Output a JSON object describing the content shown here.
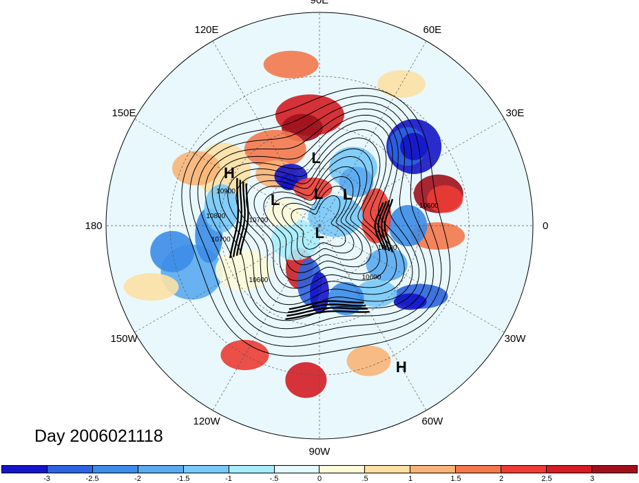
{
  "map": {
    "projection": "polar-stereographic-north",
    "center_lon_at_right": "0",
    "longitude_labels": [
      "90E",
      "60E",
      "30E",
      "0",
      "30W",
      "60W",
      "90W",
      "120W",
      "150W",
      "180",
      "150E",
      "120E"
    ],
    "pressure_centers": [
      {
        "type": "L",
        "lat": 55,
        "lon": 93
      },
      {
        "type": "L",
        "lat": 73,
        "lon": 92
      },
      {
        "type": "L",
        "lat": 68,
        "lon": 48
      },
      {
        "type": "L",
        "lat": 63,
        "lon": 150
      },
      {
        "type": "L",
        "lat": 86,
        "lon": -90
      },
      {
        "type": "H",
        "lat": 38,
        "lon": 150
      },
      {
        "type": "H",
        "lat": 15,
        "lon": -60
      }
    ],
    "contour_labels": [
      {
        "text": "10900",
        "lat": 40,
        "lon": 160
      },
      {
        "text": "10800",
        "lat": 38,
        "lon": 175
      },
      {
        "text": "10700",
        "lat": 58,
        "lon": 175
      },
      {
        "text": "10700",
        "lat": 40,
        "lon": -172
      },
      {
        "text": "10600",
        "lat": 48,
        "lon": -138
      },
      {
        "text": "10600",
        "lat": 52,
        "lon": -45
      },
      {
        "text": "10500",
        "lat": 53,
        "lon": -18
      },
      {
        "text": "10600",
        "lat": 35,
        "lon": 10
      }
    ],
    "colors": {
      "background": "#ffffff",
      "ocean_neutral": "#e8f8fc",
      "contour": "#000000"
    }
  },
  "day_label": "Day 2006021118",
  "colorbar": {
    "colors": [
      "#1414c8",
      "#2c64e0",
      "#3c8ce8",
      "#5aaaf0",
      "#78c8f8",
      "#a8ecfc",
      "#e4fafc",
      "#fcfad8",
      "#fce0a4",
      "#f8b478",
      "#f4784c",
      "#ec3c34",
      "#d41c24",
      "#a0101c"
    ],
    "tick_labels": [
      "-3",
      "-2.5",
      "-2",
      "-1.5",
      "-1",
      "-.5",
      "0",
      ".5",
      "1",
      "1.5",
      "2",
      "2.5",
      "3"
    ]
  }
}
